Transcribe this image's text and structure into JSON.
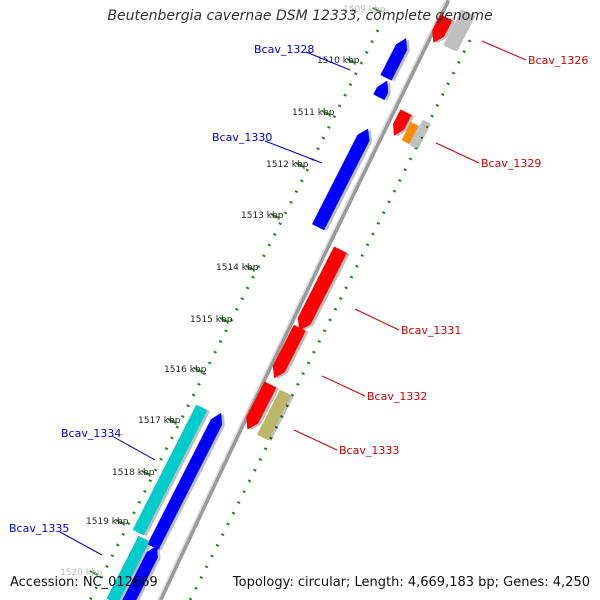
{
  "title": "Beutenbergia cavernae DSM 12333, complete genome",
  "footer": {
    "accession": "Accession: NC_012669",
    "summary": "Topology: circular; Length: 4,669,183 bp; Genes: 4,250"
  },
  "scale": {
    "unit": "kbp",
    "ticks": [
      {
        "label": "1509 kbp",
        "faint": true
      },
      {
        "label": "1510 kbp"
      },
      {
        "label": "1511 kbp"
      },
      {
        "label": "1512 kbp"
      },
      {
        "label": "1513 kbp"
      },
      {
        "label": "1514 kbp"
      },
      {
        "label": "1515 kbp"
      },
      {
        "label": "1516 kbp"
      },
      {
        "label": "1517 kbp"
      },
      {
        "label": "1518 kbp"
      },
      {
        "label": "1519 kbp"
      },
      {
        "label": "1520 kbp",
        "faint": true
      }
    ]
  },
  "genes": [
    {
      "label": "Bcav_1326",
      "strand": "forward",
      "color": "#e00000"
    },
    {
      "label": "Bcav_1328",
      "strand": "reverse",
      "color": "#0000dd"
    },
    {
      "label": "Bcav_1329",
      "strand": "forward",
      "color": "#e00000"
    },
    {
      "label": "Bcav_1330",
      "strand": "reverse",
      "color": "#0000dd"
    },
    {
      "label": "Bcav_1331",
      "strand": "forward",
      "color": "#e00000"
    },
    {
      "label": "Bcav_1332",
      "strand": "forward",
      "color": "#e00000"
    },
    {
      "label": "Bcav_1333",
      "strand": "forward",
      "color": "#e00000"
    },
    {
      "label": "Bcav_1334",
      "strand": "reverse",
      "color": "#0000dd"
    },
    {
      "label": "Bcav_1335",
      "strand": "reverse",
      "color": "#00cccc"
    }
  ],
  "colors": {
    "forward_label": "#cc0000",
    "reverse_label": "#0000cc",
    "backbone": "#777777",
    "dotted_track": "#228822",
    "cds_forward": "#ff0000",
    "cds_reverse": "#0000ff",
    "rrna": "#00cccc",
    "trna": "#ff8c00",
    "misc": "#bdb76b",
    "other": "#c0c0c0"
  }
}
